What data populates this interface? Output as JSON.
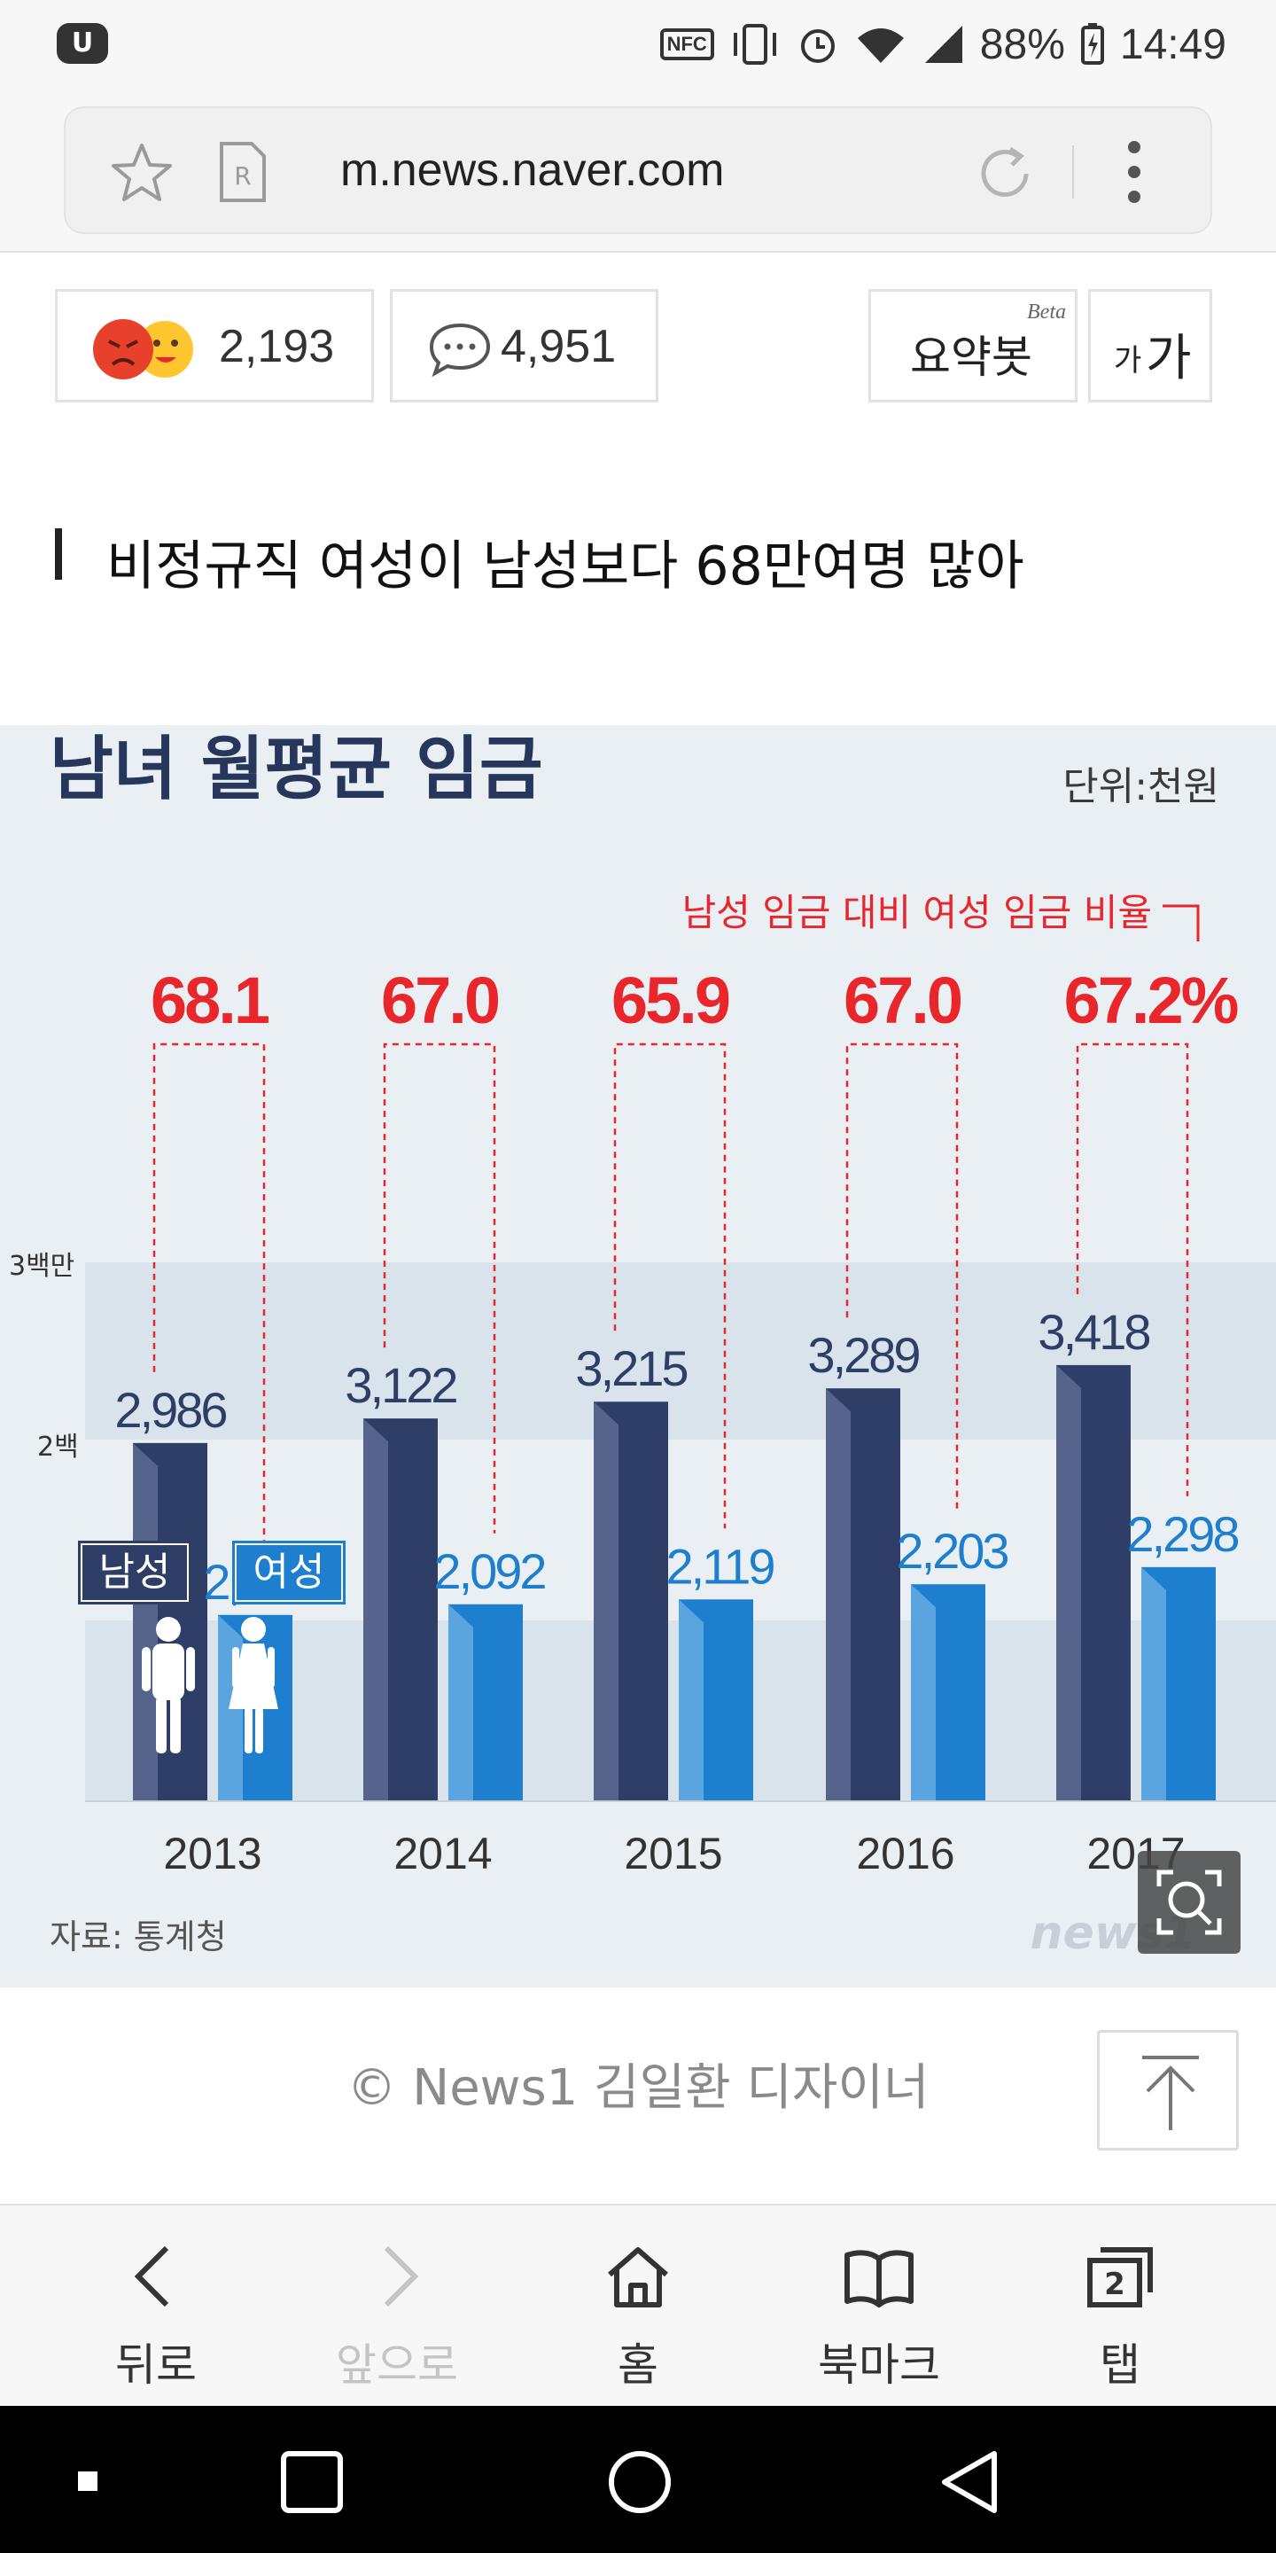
{
  "status_bar": {
    "nfc_label": "NFC",
    "battery": "88%",
    "time": "14:49"
  },
  "address_bar": {
    "url": "m.news.naver.com"
  },
  "reactions": {
    "emotion_count": "2,193",
    "comment_count": "4,951",
    "summary_label": "요약봇",
    "summary_badge": "Beta",
    "font_size_small": "가",
    "font_size_large": "가"
  },
  "article": {
    "headline": "비정규직 여성이 남성보다 68만여명 많아",
    "image_caption": "© News1 김일환 디자이너"
  },
  "infographic": {
    "title": "남녀 월평균 임금",
    "unit": "단위:천원",
    "ratio_label": "남성 임금 대비 여성 임금 비율",
    "gridline_labels": [
      "3백만",
      "2백"
    ],
    "legend_male": "남성",
    "legend_female": "여성",
    "source": "자료: 통계청",
    "watermark": "news1",
    "colors": {
      "male": "#2e3e66",
      "female": "#1f7fcf",
      "ratio": "#e8262b",
      "background": "#eaeff4",
      "band": "#d9e3ec"
    }
  },
  "chart_data": {
    "type": "bar",
    "title": "남녀 월평균 임금",
    "unit": "단위:천원",
    "categories": [
      "2013",
      "2014",
      "2015",
      "2016",
      "2017"
    ],
    "series": [
      {
        "name": "남성",
        "values": [
          2986,
          3122,
          3215,
          3289,
          3418
        ],
        "labels": [
          "2,986",
          "3,122",
          "3,215",
          "3,289",
          "3,418"
        ]
      },
      {
        "name": "여성",
        "values": [
          2033,
          2092,
          2119,
          2203,
          2298
        ],
        "labels": [
          "2,033",
          "2,092",
          "2,119",
          "2,203",
          "2,298"
        ]
      }
    ],
    "ratio": {
      "name": "남성 임금 대비 여성 임금 비율",
      "values": [
        68.1,
        67.0,
        65.9,
        67.0,
        67.2
      ],
      "labels": [
        "68.1",
        "67.0",
        "65.9",
        "67.0",
        "67.2%"
      ]
    },
    "ylim": [
      1000,
      3800
    ],
    "grid": true
  },
  "bottom_nav": {
    "items": [
      {
        "label": "뒤로",
        "icon": "back-icon"
      },
      {
        "label": "앞으로",
        "icon": "forward-icon"
      },
      {
        "label": "홈",
        "icon": "home-icon"
      },
      {
        "label": "북마크",
        "icon": "bookmark-icon"
      },
      {
        "label": "탭",
        "icon": "tabs-icon"
      }
    ],
    "tab_count": "2"
  }
}
